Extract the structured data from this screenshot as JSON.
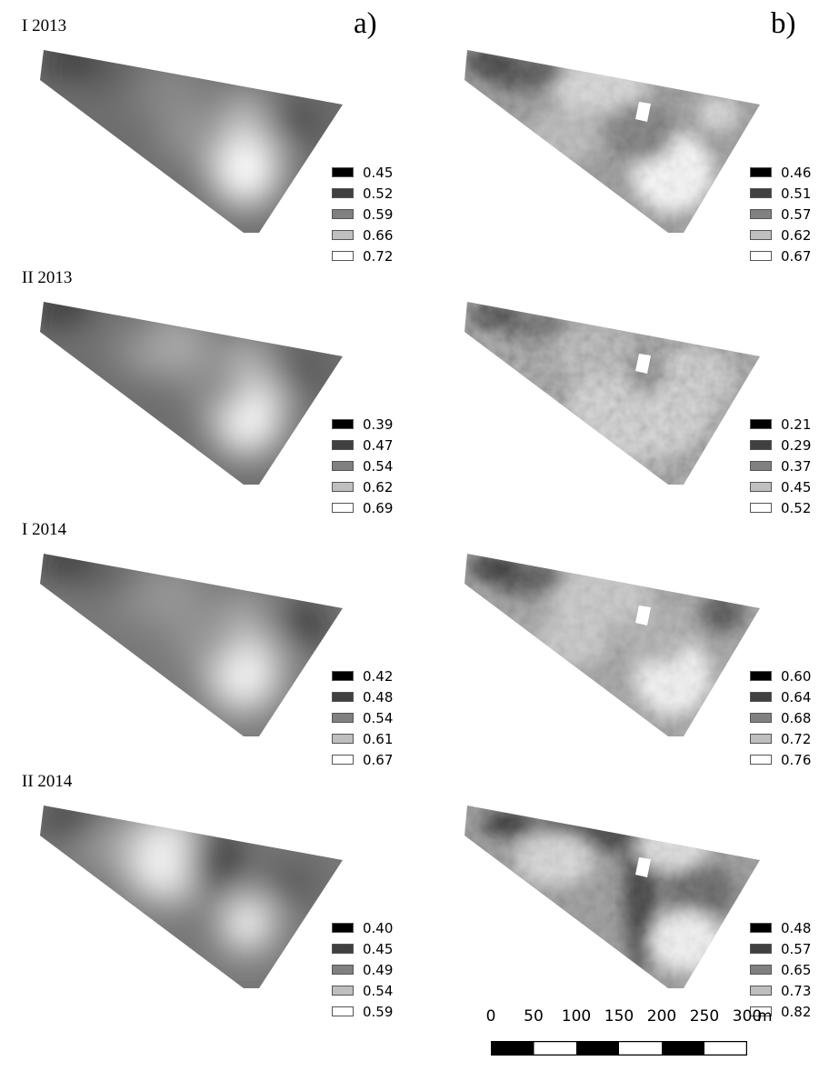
{
  "panel_letters": {
    "a": "a)",
    "b": "b)"
  },
  "rows": [
    {
      "label": "I 2013",
      "legend_a": [
        "0.45",
        "0.52",
        "0.59",
        "0.66",
        "0.72"
      ],
      "legend_b": [
        "0.46",
        "0.51",
        "0.57",
        "0.62",
        "0.67"
      ]
    },
    {
      "label": "II 2013",
      "legend_a": [
        "0.39",
        "0.47",
        "0.54",
        "0.62",
        "0.69"
      ],
      "legend_b": [
        "0.21",
        "0.29",
        "0.37",
        "0.45",
        "0.52"
      ]
    },
    {
      "label": "I 2014",
      "legend_a": [
        "0.42",
        "0.48",
        "0.54",
        "0.61",
        "0.67"
      ],
      "legend_b": [
        "0.60",
        "0.64",
        "0.68",
        "0.72",
        "0.76"
      ]
    },
    {
      "label": "II 2014",
      "legend_a": [
        "0.40",
        "0.45",
        "0.49",
        "0.54",
        "0.59"
      ],
      "legend_b": [
        "0.48",
        "0.57",
        "0.65",
        "0.73",
        "0.82"
      ]
    }
  ],
  "legend_colors": [
    "#000000",
    "#404040",
    "#808080",
    "#bfbfbf",
    "#ffffff"
  ],
  "scale_bar": {
    "ticks": [
      "0",
      "50",
      "100",
      "150",
      "200",
      "250",
      "300"
    ],
    "unit": "m"
  }
}
